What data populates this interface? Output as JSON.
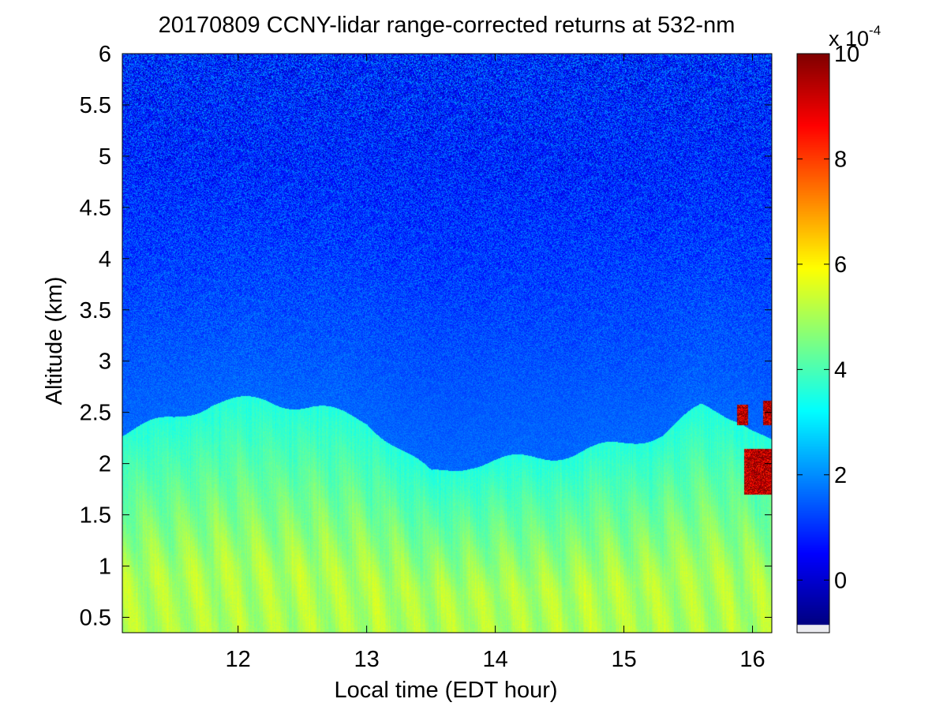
{
  "chart_data": {
    "type": "heatmap",
    "title": "20170809 CCNY-lidar range-corrected returns at 532-nm",
    "xlabel": "Local time (EDT hour)",
    "ylabel": "Altitude (km)",
    "xlim": [
      11.1,
      16.15
    ],
    "ylim": [
      0.35,
      6.0
    ],
    "x_ticks": [
      12,
      13,
      14,
      15,
      16
    ],
    "x_tick_labels": [
      "12",
      "13",
      "14",
      "15",
      "16"
    ],
    "y_ticks": [
      0.5,
      1,
      1.5,
      2,
      2.5,
      3,
      3.5,
      4,
      4.5,
      5,
      5.5,
      6
    ],
    "y_tick_labels": [
      "0.5",
      "1",
      "1.5",
      "2",
      "2.5",
      "3",
      "3.5",
      "4",
      "4.5",
      "5",
      "5.5",
      "6"
    ],
    "colorbar": {
      "colormap": "jet",
      "multiplier_label": "x 10",
      "exponent": "-4",
      "range": [
        -1,
        10
      ],
      "ticks": [
        0,
        2,
        4,
        6,
        8,
        10
      ],
      "tick_labels": [
        "0",
        "2",
        "4",
        "6",
        "8",
        "10"
      ]
    },
    "boundary_layer_top_km": [
      [
        11.1,
        2.3
      ],
      [
        11.5,
        2.45
      ],
      [
        11.8,
        2.6
      ],
      [
        12.2,
        2.62
      ],
      [
        12.6,
        2.55
      ],
      [
        13.0,
        2.42
      ],
      [
        13.3,
        2.1
      ],
      [
        13.5,
        1.9
      ],
      [
        13.8,
        2.0
      ],
      [
        14.2,
        2.05
      ],
      [
        14.6,
        2.1
      ],
      [
        15.0,
        2.2
      ],
      [
        15.3,
        2.3
      ],
      [
        15.6,
        2.55
      ],
      [
        15.9,
        2.45
      ],
      [
        16.15,
        2.2
      ]
    ],
    "aerosol_layer_signal_range": [
      3.5,
      5.0
    ],
    "free_troposphere_signal_range": [
      0.8,
      1.5
    ],
    "cloud_patches": [
      {
        "time_start": 15.88,
        "time_end": 15.96,
        "alt_low": 2.38,
        "alt_high": 2.58
      },
      {
        "time_start": 16.08,
        "time_end": 16.15,
        "alt_low": 2.38,
        "alt_high": 2.62
      },
      {
        "time_start": 15.93,
        "time_end": 16.15,
        "alt_low": 1.7,
        "alt_high": 2.15
      }
    ]
  }
}
